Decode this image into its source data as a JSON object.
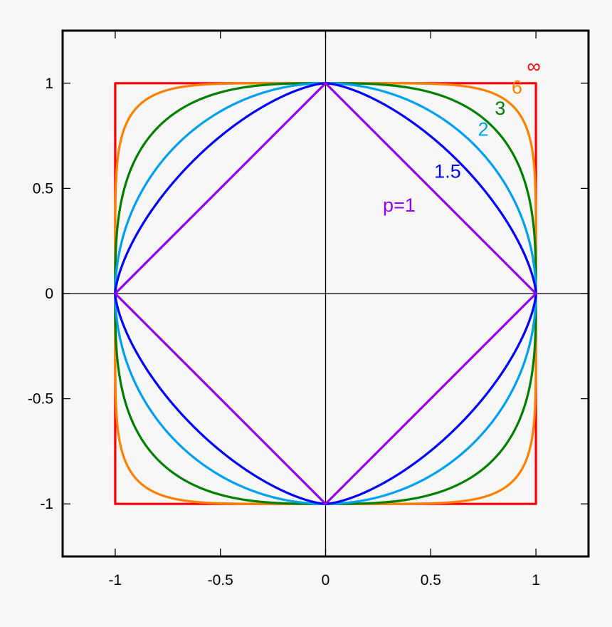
{
  "chart_data": {
    "type": "line",
    "title": "",
    "xlabel": "",
    "ylabel": "",
    "xlim": [
      -1.25,
      1.25
    ],
    "ylim": [
      -1.25,
      1.25
    ],
    "grid": false,
    "zero_axes": true,
    "x_ticks": [
      {
        "value": -1,
        "label": "-1"
      },
      {
        "value": -0.5,
        "label": "-0.5"
      },
      {
        "value": 0,
        "label": "0"
      },
      {
        "value": 0.5,
        "label": "0.5"
      },
      {
        "value": 1,
        "label": "1"
      }
    ],
    "y_ticks": [
      {
        "value": 1,
        "label": "1"
      },
      {
        "value": 0.5,
        "label": "0.5"
      },
      {
        "value": 0,
        "label": "0"
      },
      {
        "value": -0.5,
        "label": "-0.5"
      },
      {
        "value": -1,
        "label": "-1"
      }
    ],
    "series": [
      {
        "name": "∞",
        "p": "inf",
        "color": "#ff0000",
        "label_pos": [
          0.99,
          1.05
        ]
      },
      {
        "name": "6",
        "p": 6,
        "color": "#ff8000",
        "label_pos": [
          0.91,
          0.95
        ]
      },
      {
        "name": "3",
        "p": 3,
        "color": "#008000",
        "label_pos": [
          0.83,
          0.85
        ]
      },
      {
        "name": "2",
        "p": 2,
        "color": "#00a0f0",
        "label_pos": [
          0.75,
          0.75
        ]
      },
      {
        "name": "1.5",
        "p": 1.5,
        "color": "#0000ff",
        "label_pos": [
          0.58,
          0.55
        ]
      },
      {
        "name": "p=1",
        "p": 1,
        "color": "#9400f0",
        "label_pos": [
          0.35,
          0.39
        ]
      }
    ]
  }
}
